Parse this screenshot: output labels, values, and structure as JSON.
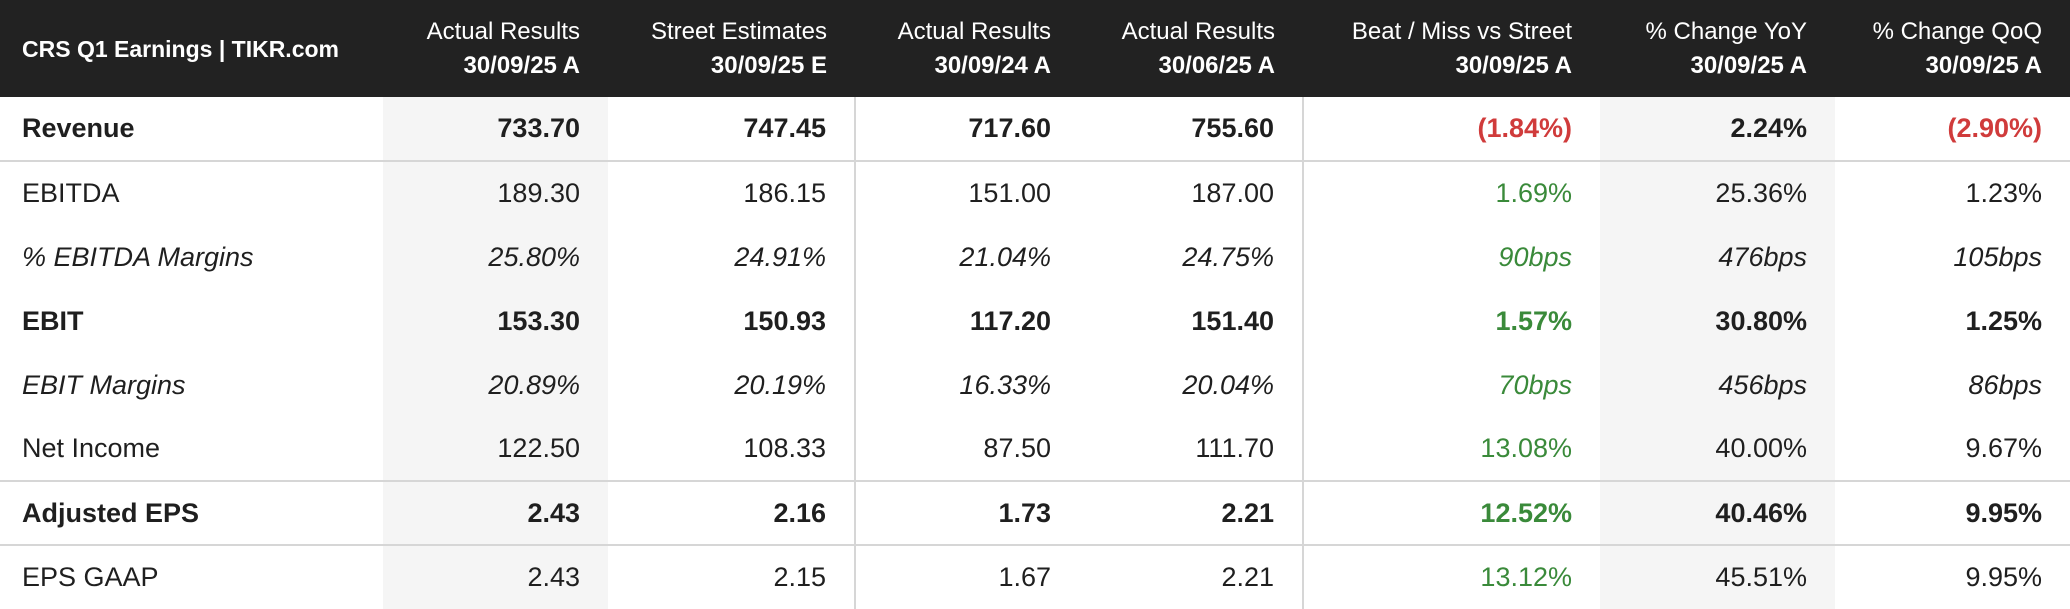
{
  "header": {
    "title": "CRS Q1 Earnings | TIKR.com",
    "columns": [
      {
        "line1": "Actual Results",
        "line2": "30/09/25 A"
      },
      {
        "line1": "Street Estimates",
        "line2": "30/09/25 E"
      },
      {
        "line1": "Actual Results",
        "line2": "30/09/24 A"
      },
      {
        "line1": "Actual Results",
        "line2": "30/06/25 A"
      },
      {
        "line1": "Beat / Miss vs Street",
        "line2": "30/09/25 A"
      },
      {
        "line1": "% Change YoY",
        "line2": "30/09/25 A"
      },
      {
        "line1": "% Change QoQ",
        "line2": "30/09/25 A"
      }
    ]
  },
  "colors": {
    "header_bg": "#222222",
    "negative": "#d03b3b",
    "positive": "#3a8a3a",
    "shade": "#f5f5f5"
  },
  "rows": [
    {
      "label": "Revenue",
      "values": [
        "733.70",
        "747.45",
        "717.60",
        "755.60",
        "(1.84%)",
        "2.24%",
        "(2.90%)"
      ]
    },
    {
      "label": "EBITDA",
      "values": [
        "189.30",
        "186.15",
        "151.00",
        "187.00",
        "1.69%",
        "25.36%",
        "1.23%"
      ]
    },
    {
      "label": "% EBITDA Margins",
      "values": [
        "25.80%",
        "24.91%",
        "21.04%",
        "24.75%",
        "90bps",
        "476bps",
        "105bps"
      ]
    },
    {
      "label": "EBIT",
      "values": [
        "153.30",
        "150.93",
        "117.20",
        "151.40",
        "1.57%",
        "30.80%",
        "1.25%"
      ]
    },
    {
      "label": "EBIT Margins",
      "values": [
        "20.89%",
        "20.19%",
        "16.33%",
        "20.04%",
        "70bps",
        "456bps",
        "86bps"
      ]
    },
    {
      "label": "Net Income",
      "values": [
        "122.50",
        "108.33",
        "87.50",
        "111.70",
        "13.08%",
        "40.00%",
        "9.67%"
      ]
    },
    {
      "label": "Adjusted EPS",
      "values": [
        "2.43",
        "2.16",
        "1.73",
        "2.21",
        "12.52%",
        "40.46%",
        "9.95%"
      ]
    },
    {
      "label": "EPS GAAP",
      "values": [
        "2.43",
        "2.15",
        "1.67",
        "2.21",
        "13.12%",
        "45.51%",
        "9.95%"
      ]
    }
  ]
}
